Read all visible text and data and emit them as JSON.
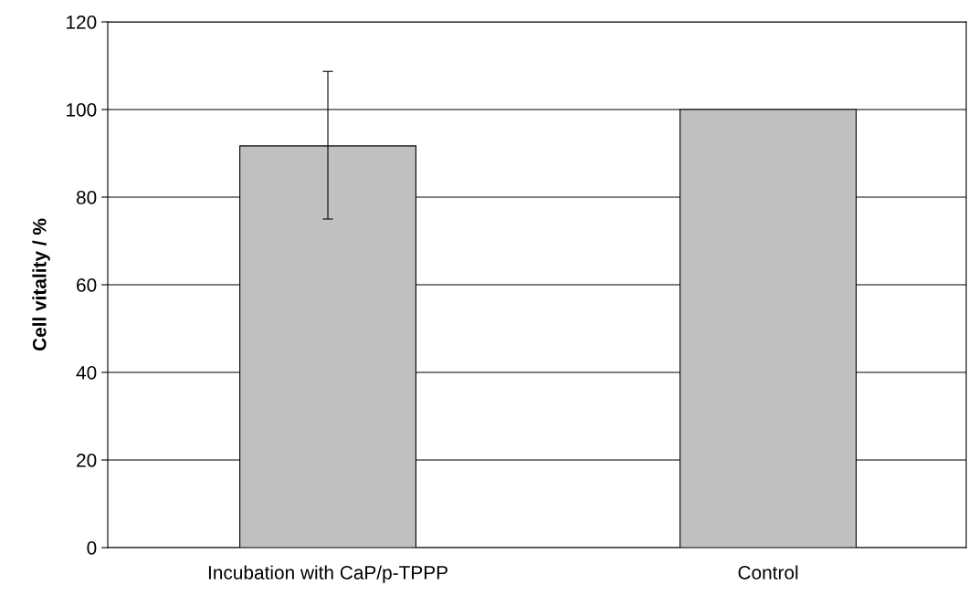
{
  "chart_data": {
    "type": "bar",
    "ylabel": "Cell vitality / %",
    "categories": [
      "Incubation with CaP/p-TPPP",
      "Control"
    ],
    "values": [
      91.7,
      100
    ],
    "errors": [
      [
        75,
        108.7
      ],
      null
    ],
    "color": "#c0c0c0",
    "ylim": [
      0,
      120
    ],
    "yticks": [
      0,
      20,
      40,
      60,
      80,
      100,
      120
    ],
    "grid": "y",
    "legend": false
  }
}
